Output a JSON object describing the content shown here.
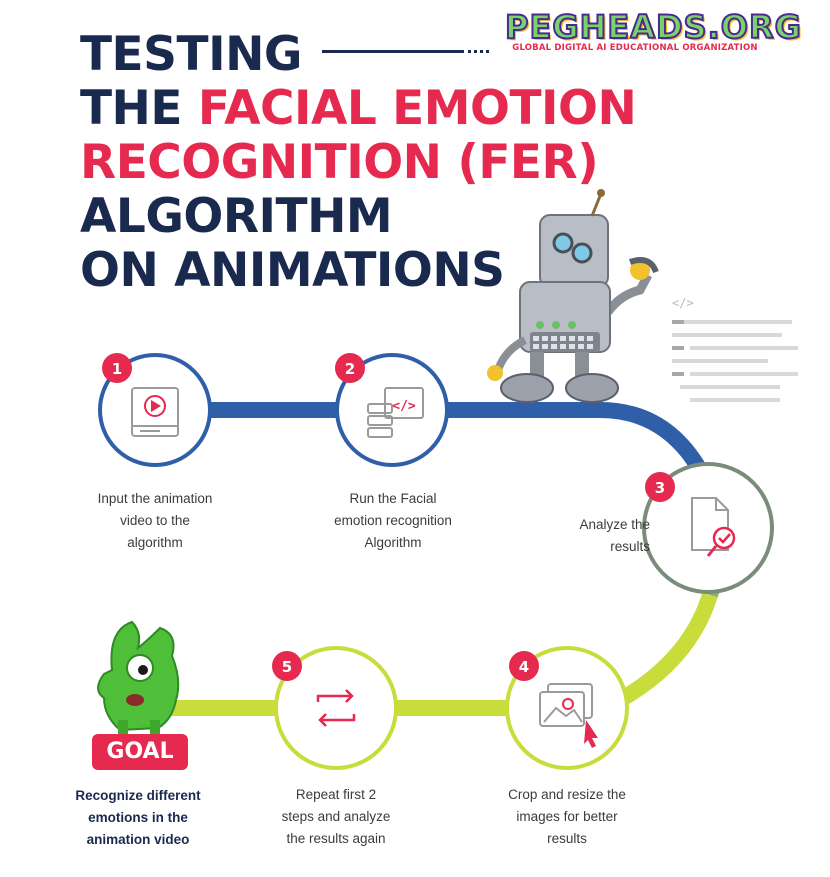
{
  "brand": {
    "name": "PEGHEADS.ORG",
    "tagline": "GLOBAL DIGITAL AI EDUCATIONAL ORGANIZATION"
  },
  "title": {
    "line1": "TESTING",
    "line2_a": "THE ",
    "line2_b": "FACIAL EMOTION",
    "line3": "RECOGNITION (FER)",
    "line4": "ALGORITHM",
    "line5": "ON ANIMATIONS"
  },
  "code_badge": "</>",
  "steps": [
    {
      "number": "1",
      "icon": "video-player-icon",
      "text": [
        "Input the animation",
        "video to the",
        "algorithm"
      ]
    },
    {
      "number": "2",
      "icon": "code-server-icon",
      "text": [
        "Run the Facial",
        "emotion recognition",
        "Algorithm"
      ]
    },
    {
      "number": "3",
      "icon": "document-check-icon",
      "text": [
        "Analyze the",
        "results"
      ]
    },
    {
      "number": "4",
      "icon": "image-crop-icon",
      "text": [
        "Crop and resize the",
        "images for better",
        "results"
      ]
    },
    {
      "number": "5",
      "icon": "repeat-arrows-icon",
      "text": [
        "Repeat first 2",
        "steps and analyze",
        "the results again"
      ]
    }
  ],
  "goal": {
    "badge": "GOAL",
    "text": [
      "Recognize different",
      "emotions in the",
      "animation video"
    ]
  },
  "colors": {
    "navy": "#1a2a4f",
    "red": "#e5294f",
    "blue_path": "#2f5fa8",
    "green_path": "#c8dc3c",
    "step3_ring": "#7a8c7a",
    "brand_green": "#7ad36a",
    "brand_purple": "#4a2a8f"
  }
}
